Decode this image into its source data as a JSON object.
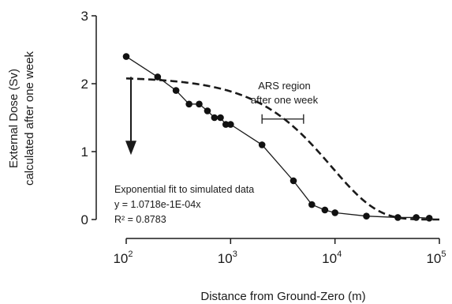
{
  "chart_data": {
    "type": "scatter",
    "xlabel": "Distance from Ground-Zero (m)",
    "ylabel_lines": [
      "External  Dose (Sv)",
      "calculated after one week"
    ],
    "x_scale": "log",
    "xlim": [
      100,
      100000
    ],
    "ylim": [
      0,
      3
    ],
    "x_ticks": [
      {
        "base": "10",
        "exp": "2",
        "value": 100
      },
      {
        "base": "10",
        "exp": "3",
        "value": 1000
      },
      {
        "base": "10",
        "exp": "4",
        "value": 10000
      },
      {
        "base": "10",
        "exp": "5",
        "value": 100000
      }
    ],
    "y_ticks": [
      {
        "label": "0",
        "value": 0
      },
      {
        "label": "1",
        "value": 1
      },
      {
        "label": "2",
        "value": 2
      },
      {
        "label": "3",
        "value": 3
      }
    ],
    "series": [
      {
        "style": "points-with-line",
        "points": [
          [
            100,
            2.4
          ],
          [
            200,
            2.1
          ],
          [
            300,
            1.9
          ],
          [
            400,
            1.7
          ],
          [
            500,
            1.7
          ],
          [
            600,
            1.6
          ],
          [
            700,
            1.5
          ],
          [
            800,
            1.5
          ],
          [
            900,
            1.4
          ],
          [
            1000,
            1.4
          ],
          [
            2000,
            1.1
          ],
          [
            4000,
            0.57
          ],
          [
            6000,
            0.22
          ],
          [
            8000,
            0.14
          ],
          [
            10000,
            0.1
          ],
          [
            20000,
            0.05
          ],
          [
            40000,
            0.03
          ],
          [
            60000,
            0.03
          ],
          [
            80000,
            0.02
          ]
        ]
      },
      {
        "style": "dashed-fit",
        "formula": "y = 2.1 * exp(-1.0718e-4 * x)"
      }
    ],
    "annotations": {
      "region_lines": [
        "ARS region",
        "after one week"
      ],
      "region_range": [
        2000,
        5000
      ],
      "region_y": 1.48,
      "arrow_x": 100,
      "arrow_from_y": 2.1,
      "arrow_to_y": 0.95,
      "fit_lines": [
        "Exponential fit to simulated data",
        "y = 1.0718e-1E-04x",
        "R² = 0.8783"
      ]
    }
  }
}
